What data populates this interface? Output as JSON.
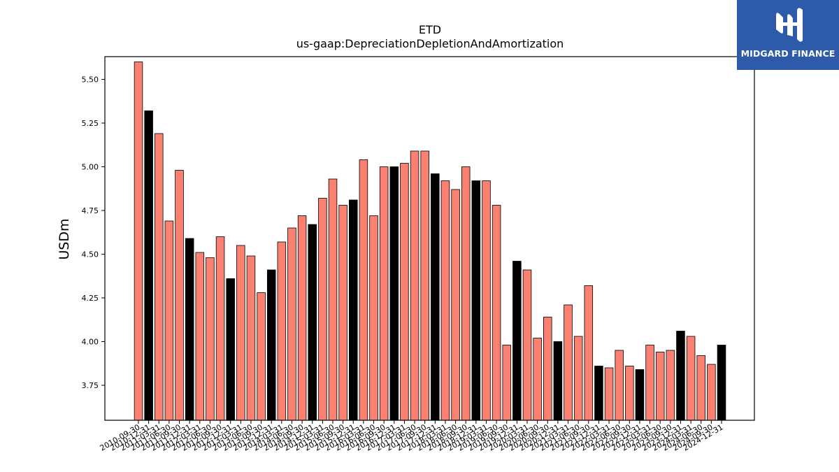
{
  "brand": {
    "name": "MIDGARD FINANCE"
  },
  "chart_data": {
    "type": "bar",
    "title": "ETD",
    "subtitle": "us-gaap:DepreciationDepletionAndAmortization",
    "ylabel": "USDm",
    "ylim": [
      3.55,
      5.63
    ],
    "yticks": [
      "3.75",
      "4.00",
      "4.25",
      "4.50",
      "4.75",
      "5.00",
      "5.25",
      "5.50"
    ],
    "colors": {
      "quarter": "#fa8072",
      "fiscal_year_end": "#000000"
    },
    "bars": [
      {
        "date": "2010-09-30",
        "value": 5.6,
        "fy": false
      },
      {
        "date": "2010-12-31",
        "value": 5.32,
        "fy": true
      },
      {
        "date": "2011-03-31",
        "value": 5.19,
        "fy": false
      },
      {
        "date": "2011-06-30",
        "value": 4.69,
        "fy": false
      },
      {
        "date": "2011-09-30",
        "value": 4.98,
        "fy": false
      },
      {
        "date": "2011-12-31",
        "value": 4.59,
        "fy": true
      },
      {
        "date": "2012-03-31",
        "value": 4.51,
        "fy": false
      },
      {
        "date": "2012-06-30",
        "value": 4.48,
        "fy": false
      },
      {
        "date": "2012-09-30",
        "value": 4.6,
        "fy": false
      },
      {
        "date": "2012-12-31",
        "value": 4.36,
        "fy": true
      },
      {
        "date": "2013-03-31",
        "value": 4.55,
        "fy": false
      },
      {
        "date": "2013-06-30",
        "value": 4.49,
        "fy": false
      },
      {
        "date": "2013-09-30",
        "value": 4.28,
        "fy": false
      },
      {
        "date": "2013-12-31",
        "value": 4.41,
        "fy": true
      },
      {
        "date": "2014-03-31",
        "value": 4.57,
        "fy": false
      },
      {
        "date": "2014-06-30",
        "value": 4.65,
        "fy": false
      },
      {
        "date": "2014-09-30",
        "value": 4.72,
        "fy": false
      },
      {
        "date": "2014-12-31",
        "value": 4.67,
        "fy": true
      },
      {
        "date": "2015-03-31",
        "value": 4.82,
        "fy": false
      },
      {
        "date": "2015-06-30",
        "value": 4.93,
        "fy": false
      },
      {
        "date": "2015-09-30",
        "value": 4.78,
        "fy": false
      },
      {
        "date": "2015-12-31",
        "value": 4.81,
        "fy": true
      },
      {
        "date": "2016-03-31",
        "value": 5.04,
        "fy": false
      },
      {
        "date": "2016-06-30",
        "value": 4.72,
        "fy": false
      },
      {
        "date": "2016-09-30",
        "value": 5.0,
        "fy": false
      },
      {
        "date": "2016-12-31",
        "value": 5.0,
        "fy": true
      },
      {
        "date": "2017-03-31",
        "value": 5.02,
        "fy": false
      },
      {
        "date": "2017-06-30",
        "value": 5.09,
        "fy": false
      },
      {
        "date": "2017-09-30",
        "value": 5.09,
        "fy": false
      },
      {
        "date": "2017-12-31",
        "value": 4.96,
        "fy": true
      },
      {
        "date": "2018-03-31",
        "value": 4.92,
        "fy": false
      },
      {
        "date": "2018-06-30",
        "value": 4.87,
        "fy": false
      },
      {
        "date": "2018-09-30",
        "value": 5.0,
        "fy": false
      },
      {
        "date": "2018-12-31",
        "value": 4.92,
        "fy": true
      },
      {
        "date": "2019-03-31",
        "value": 4.92,
        "fy": false
      },
      {
        "date": "2019-06-30",
        "value": 4.78,
        "fy": false
      },
      {
        "date": "2019-09-30",
        "value": 3.98,
        "fy": false
      },
      {
        "date": "2019-12-31",
        "value": 4.46,
        "fy": true
      },
      {
        "date": "2020-03-31",
        "value": 4.41,
        "fy": false
      },
      {
        "date": "2020-06-30",
        "value": 4.02,
        "fy": false
      },
      {
        "date": "2020-09-30",
        "value": 4.14,
        "fy": false
      },
      {
        "date": "2020-12-31",
        "value": 4.0,
        "fy": true
      },
      {
        "date": "2021-03-31",
        "value": 4.21,
        "fy": false
      },
      {
        "date": "2021-06-30",
        "value": 4.03,
        "fy": false
      },
      {
        "date": "2021-09-30",
        "value": 4.32,
        "fy": false
      },
      {
        "date": "2021-12-31",
        "value": 3.86,
        "fy": true
      },
      {
        "date": "2022-03-31",
        "value": 3.85,
        "fy": false
      },
      {
        "date": "2022-06-30",
        "value": 3.95,
        "fy": false
      },
      {
        "date": "2022-09-30",
        "value": 3.86,
        "fy": false
      },
      {
        "date": "2022-12-31",
        "value": 3.84,
        "fy": true
      },
      {
        "date": "2023-03-31",
        "value": 3.98,
        "fy": false
      },
      {
        "date": "2023-06-30",
        "value": 3.94,
        "fy": false
      },
      {
        "date": "2023-09-30",
        "value": 3.95,
        "fy": false
      },
      {
        "date": "2023-12-31",
        "value": 4.06,
        "fy": true
      },
      {
        "date": "2024-03-31",
        "value": 4.03,
        "fy": false
      },
      {
        "date": "2024-06-30",
        "value": 3.92,
        "fy": false
      },
      {
        "date": "2024-09-30",
        "value": 3.87,
        "fy": false
      },
      {
        "date": "2024-12-31",
        "value": 3.98,
        "fy": true
      }
    ]
  }
}
